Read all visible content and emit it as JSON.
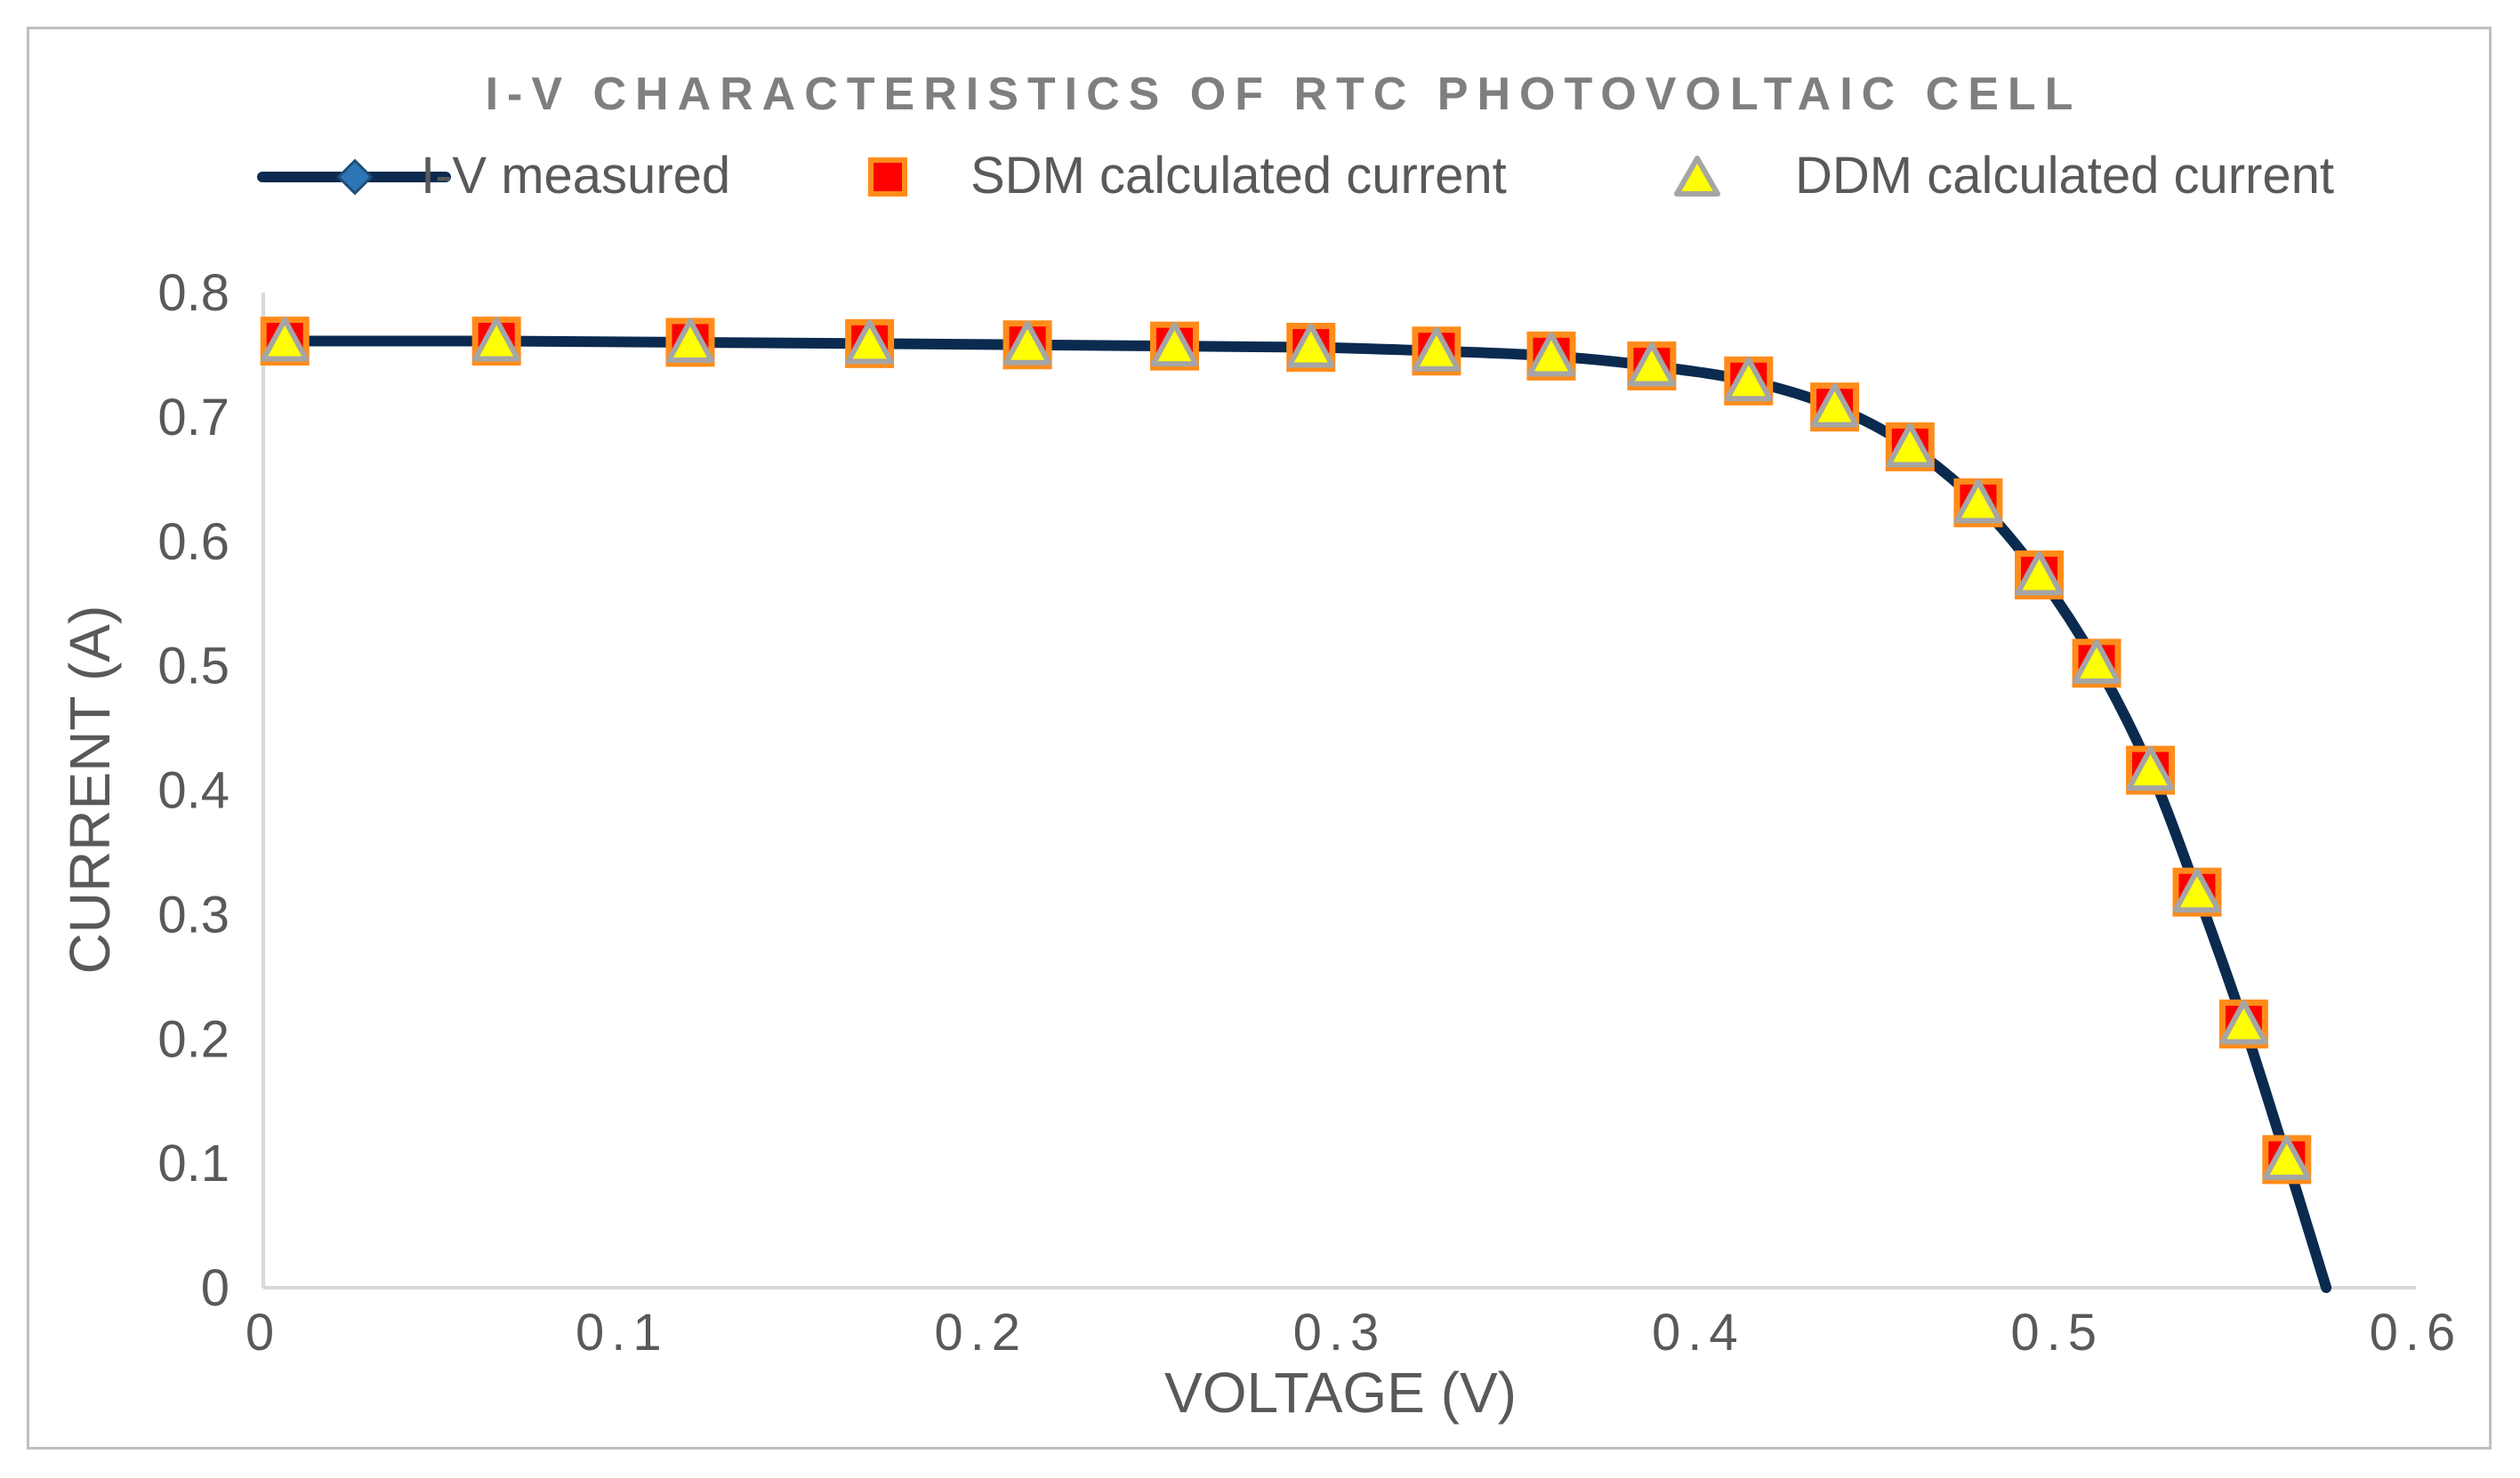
{
  "chart_data": {
    "type": "line",
    "title": "I-V CHARACTERISTICS OF RTC PHOTOVOLTAIC CELL",
    "xlabel": "VOLTAGE (V)",
    "ylabel": "CURRENT (A)",
    "xlim": [
      0,
      0.6
    ],
    "ylim": [
      0,
      0.8
    ],
    "x_ticks": [
      "0",
      "0.1",
      "0.2",
      "0.3",
      "0.4",
      "0.5",
      "0.6"
    ],
    "y_ticks": [
      "0",
      "0.1",
      "0.2",
      "0.3",
      "0.4",
      "0.5",
      "0.6",
      "0.7",
      "0.8"
    ],
    "x_tick_values": [
      0,
      0.1,
      0.2,
      0.3,
      0.4,
      0.5,
      0.6
    ],
    "y_tick_values": [
      0,
      0.1,
      0.2,
      0.3,
      0.4,
      0.5,
      0.6,
      0.7,
      0.8
    ],
    "grid": false,
    "legend_position": "top",
    "colors": {
      "measured_line": "#0a2a4f",
      "measured_marker": "#2e75b6",
      "sdm_fill": "#ff0000",
      "sdm_stroke": "#ff8c1a",
      "ddm_fill": "#ffff00",
      "ddm_stroke": "#a5a5a5",
      "axis": "#d9d9d9",
      "tick_text": "#595959",
      "title": "#7f7f7f"
    },
    "series": [
      {
        "name": "I-V measured",
        "style": "smooth-line",
        "x": [
          0.006,
          0.065,
          0.119,
          0.169,
          0.213,
          0.254,
          0.292,
          0.327,
          0.359,
          0.387,
          0.414,
          0.438,
          0.459,
          0.478,
          0.495,
          0.511,
          0.526,
          0.539,
          0.552,
          0.564,
          0.575
        ],
        "y": [
          0.761,
          0.761,
          0.76,
          0.759,
          0.758,
          0.757,
          0.756,
          0.753,
          0.749,
          0.741,
          0.729,
          0.708,
          0.676,
          0.631,
          0.573,
          0.502,
          0.416,
          0.318,
          0.212,
          0.103,
          0.0
        ]
      },
      {
        "name": "SDM calculated current",
        "style": "square-marker",
        "x": [
          0.006,
          0.065,
          0.119,
          0.169,
          0.213,
          0.254,
          0.292,
          0.327,
          0.359,
          0.387,
          0.414,
          0.438,
          0.459,
          0.478,
          0.495,
          0.511,
          0.526,
          0.539,
          0.552,
          0.564
        ],
        "y": [
          0.761,
          0.761,
          0.76,
          0.759,
          0.758,
          0.757,
          0.756,
          0.753,
          0.749,
          0.741,
          0.729,
          0.708,
          0.676,
          0.631,
          0.573,
          0.502,
          0.416,
          0.318,
          0.212,
          0.103
        ]
      },
      {
        "name": "DDM calculated current",
        "style": "triangle-marker",
        "x": [
          0.006,
          0.065,
          0.119,
          0.169,
          0.213,
          0.254,
          0.292,
          0.327,
          0.359,
          0.387,
          0.414,
          0.438,
          0.459,
          0.478,
          0.495,
          0.511,
          0.526,
          0.539,
          0.552,
          0.564
        ],
        "y": [
          0.761,
          0.761,
          0.76,
          0.759,
          0.758,
          0.757,
          0.756,
          0.753,
          0.749,
          0.741,
          0.729,
          0.708,
          0.676,
          0.631,
          0.573,
          0.502,
          0.416,
          0.318,
          0.212,
          0.103
        ]
      }
    ]
  }
}
